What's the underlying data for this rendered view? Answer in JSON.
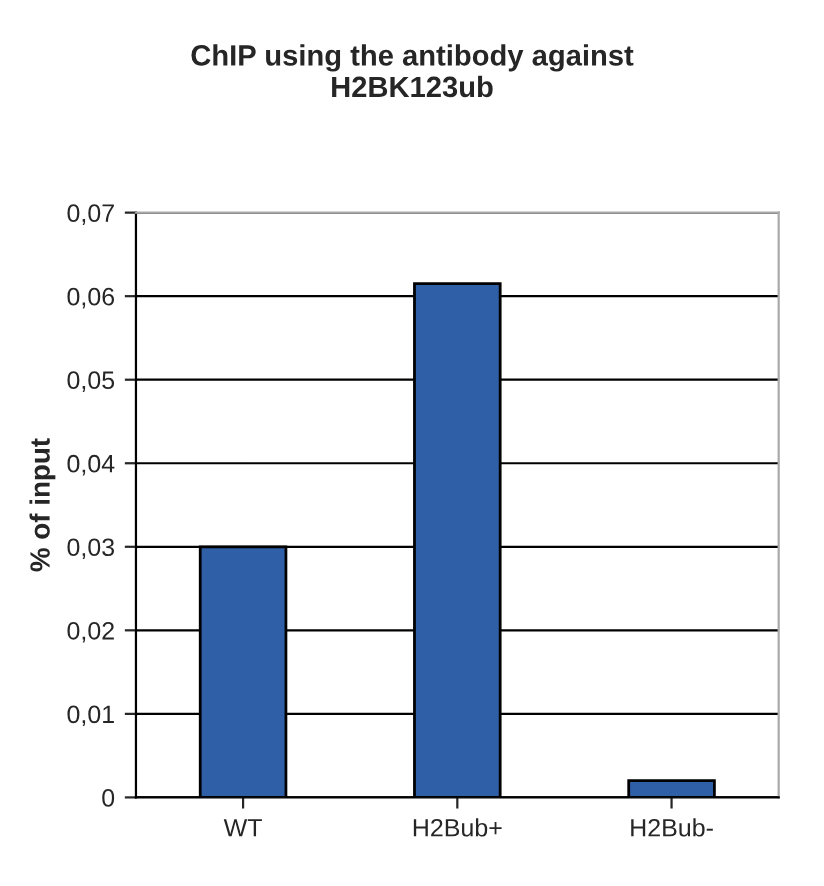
{
  "chart_data": {
    "type": "bar",
    "title": "ChIP using the antibody against\nH2BK123ub",
    "ylabel": "% of input",
    "categories": [
      "WT",
      "H2Bub+",
      "H2Bub-"
    ],
    "values": [
      0.03,
      0.0615,
      0.002
    ],
    "color": "#2f5fa6",
    "ylim": [
      0,
      0.07
    ],
    "yticks": [
      {
        "value": 0,
        "label": "0"
      },
      {
        "value": 0.01,
        "label": "0,01"
      },
      {
        "value": 0.02,
        "label": "0,02"
      },
      {
        "value": 0.03,
        "label": "0,03"
      },
      {
        "value": 0.04,
        "label": "0,04"
      },
      {
        "value": 0.05,
        "label": "0,05"
      },
      {
        "value": 0.06,
        "label": "0,06"
      },
      {
        "value": 0.07,
        "label": "0,07"
      }
    ],
    "grid": "y",
    "legend": false
  }
}
